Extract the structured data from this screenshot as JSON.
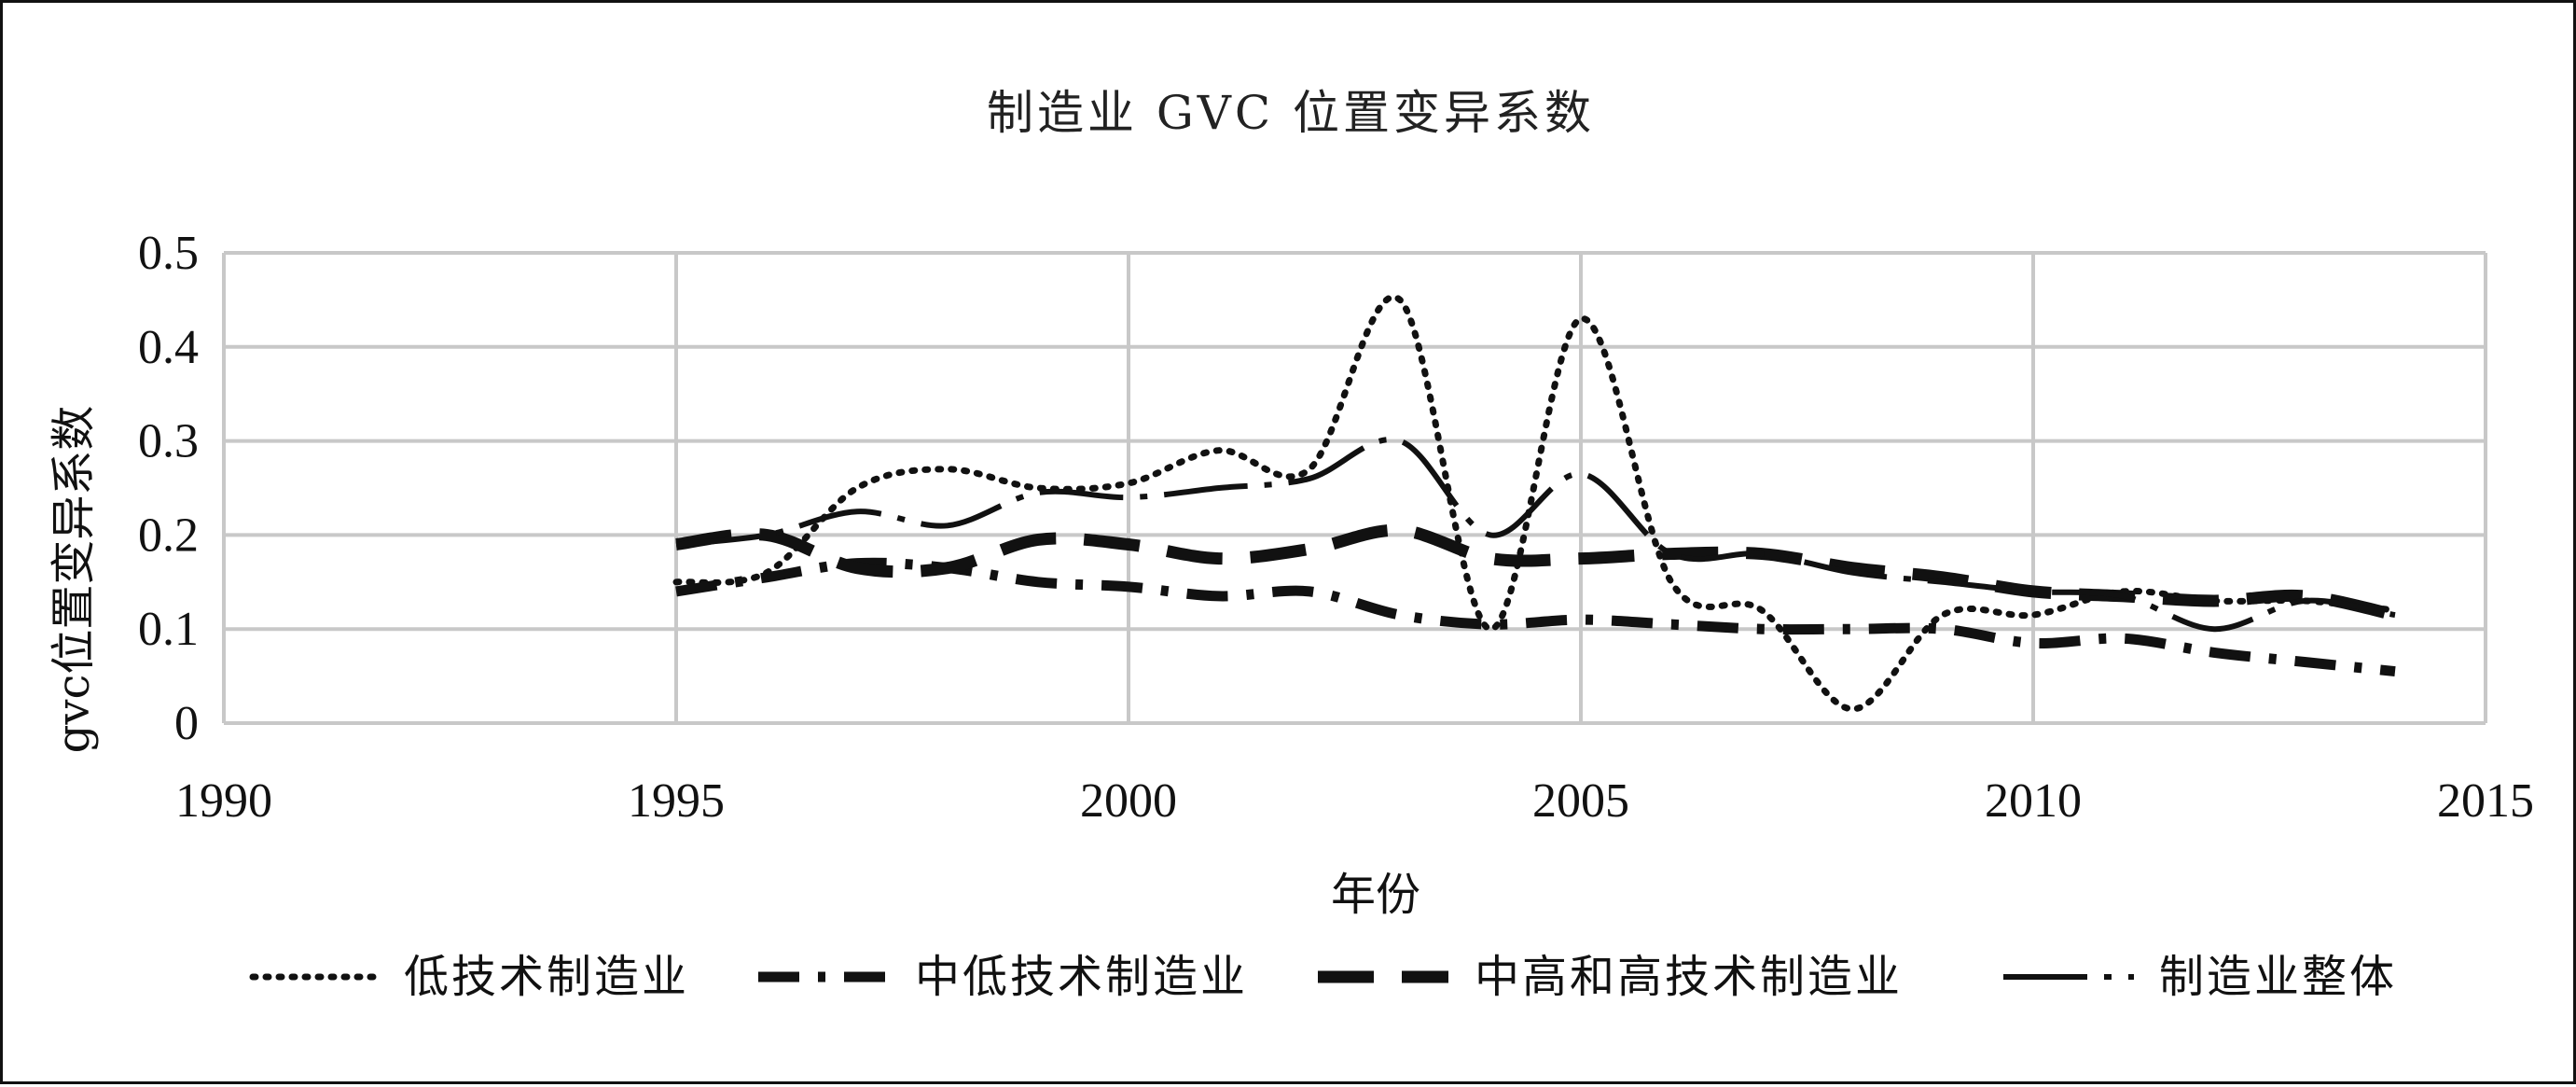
{
  "chart_data": {
    "type": "line",
    "title": "制造业 GVC 位置变异系数",
    "xlabel": "年份",
    "ylabel": "gvc位置变异系数",
    "xlim": [
      1990,
      2015
    ],
    "ylim": [
      0,
      0.5
    ],
    "x_ticks": [
      "1990",
      "1995",
      "2000",
      "2005",
      "2010",
      "2015"
    ],
    "y_ticks": [
      "0",
      "0.1",
      "0.2",
      "0.3",
      "0.4",
      "0.5"
    ],
    "grid": true,
    "legend_position": "bottom",
    "x": [
      1995,
      1996,
      1997,
      1998,
      1999,
      2000,
      2001,
      2002,
      2003,
      2004,
      2005,
      2006,
      2007,
      2008,
      2009,
      2010,
      2011,
      2012,
      2013,
      2014
    ],
    "series": [
      {
        "name": "低技术制造业",
        "style": "dotted",
        "values": [
          0.15,
          0.16,
          0.25,
          0.27,
          0.25,
          0.255,
          0.29,
          0.27,
          0.45,
          0.1,
          0.43,
          0.15,
          0.12,
          0.015,
          0.115,
          0.115,
          0.14,
          0.13,
          0.13,
          0.12
        ]
      },
      {
        "name": "中低技术制造业",
        "style": "long-dash-dot",
        "values": [
          0.14,
          0.155,
          0.17,
          0.165,
          0.15,
          0.145,
          0.135,
          0.14,
          0.115,
          0.105,
          0.11,
          0.105,
          0.1,
          0.1,
          0.1,
          0.085,
          0.09,
          0.075,
          0.065,
          0.055
        ]
      },
      {
        "name": "中高和高技术制造业",
        "style": "long-dash",
        "values": [
          0.19,
          0.2,
          0.165,
          0.165,
          0.195,
          0.19,
          0.175,
          0.185,
          0.205,
          0.175,
          0.175,
          0.18,
          0.18,
          0.165,
          0.155,
          0.14,
          0.135,
          0.13,
          0.135,
          0.115
        ]
      },
      {
        "name": "制造业整体",
        "style": "dash-dot-solid",
        "values": [
          0.19,
          0.2,
          0.225,
          0.21,
          0.245,
          0.24,
          0.25,
          0.26,
          0.3,
          0.2,
          0.265,
          0.18,
          0.18,
          0.16,
          0.15,
          0.14,
          0.135,
          0.1,
          0.13,
          0.115
        ]
      }
    ]
  }
}
